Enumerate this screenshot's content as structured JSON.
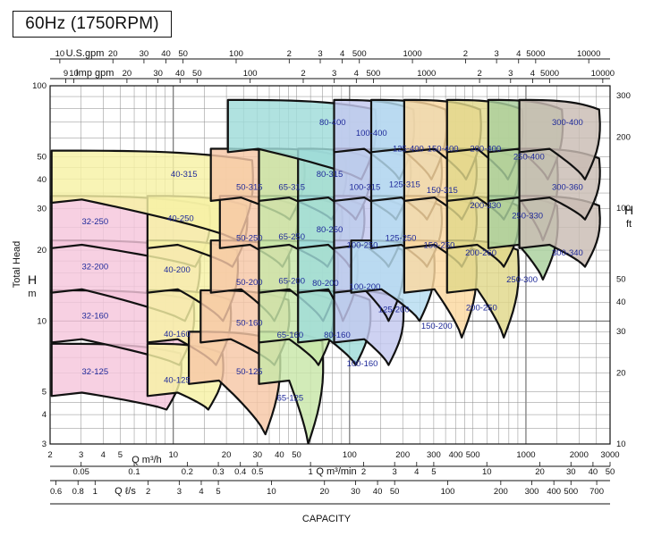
{
  "title": "60Hz (1750RPM)",
  "chart_data": {
    "type": "area",
    "title": "60Hz (1750RPM)",
    "xlabel": "CAPACITY",
    "ylabel": "Total Head",
    "left_axis": {
      "symbol": "H",
      "unit": "m",
      "scale": "log",
      "range": [
        3,
        100
      ],
      "ticks": [
        "3",
        "4",
        "5",
        "10",
        "20",
        "30",
        "40",
        "50",
        "100"
      ]
    },
    "right_axis": {
      "symbol": "H",
      "unit": "ft",
      "scale": "log",
      "range": [
        10,
        330
      ],
      "ticks": [
        "10",
        "20",
        "30",
        "40",
        "50",
        "100",
        "200",
        "300"
      ]
    },
    "top_axes": [
      {
        "label": "U.S.gpm",
        "scale": "log",
        "ticks": [
          "10",
          "20",
          "30",
          "40",
          "50",
          "100",
          "2",
          "3",
          "4",
          "500",
          "1000",
          "2",
          "3",
          "4",
          "5000",
          "10000"
        ]
      },
      {
        "label": "Imp gpm",
        "scale": "log",
        "ticks": [
          "9",
          "10",
          "20",
          "30",
          "40",
          "50",
          "100",
          "2",
          "3",
          "4",
          "500",
          "1000",
          "2",
          "3",
          "4",
          "5000",
          "10000"
        ]
      }
    ],
    "bottom_axes": [
      {
        "label": "Q m³/h",
        "scale": "log",
        "range": [
          2,
          3000
        ],
        "ticks": [
          "2",
          "3",
          "4",
          "5",
          "10",
          "20",
          "30",
          "40",
          "50",
          "100",
          "200",
          "300",
          "400",
          "500",
          "1000",
          "2000",
          "3000"
        ]
      },
      {
        "label": "Q m³/min",
        "scale": "log",
        "ticks": [
          "0.05",
          "0.1",
          "0.2",
          "0.3",
          "0.4",
          "0.5",
          "1",
          "2",
          "3",
          "4",
          "5",
          "10",
          "20",
          "30",
          "40",
          "50"
        ]
      },
      {
        "label": "Q ℓ/s",
        "scale": "log",
        "ticks": [
          "0.6",
          "0.8",
          "1",
          "2",
          "3",
          "4",
          "5",
          "10",
          "20",
          "30",
          "40",
          "50",
          "100",
          "200",
          "300",
          "400",
          "500",
          "700"
        ]
      }
    ],
    "grid": true,
    "series": [
      {
        "name": "32-125",
        "color": "#f5c6dc",
        "q_range_m3h": [
          2,
          11
        ],
        "head_range_m": [
          4.2,
          8
        ]
      },
      {
        "name": "32-160",
        "color": "#f5c6dc",
        "q_range_m3h": [
          2,
          13
        ],
        "head_range_m": [
          6.5,
          13.5
        ]
      },
      {
        "name": "32-200",
        "color": "#f5c6dc",
        "q_range_m3h": [
          2,
          14
        ],
        "head_range_m": [
          10,
          22
        ]
      },
      {
        "name": "32-250",
        "color": "#f5c6dc",
        "q_range_m3h": [
          2,
          16
        ],
        "head_range_m": [
          17,
          34
        ]
      },
      {
        "name": "40-125",
        "color": "#f7f1a5",
        "q_range_m3h": [
          7,
          19
        ],
        "head_range_m": [
          4.2,
          8
        ]
      },
      {
        "name": "40-160",
        "color": "#f7f1a5",
        "q_range_m3h": [
          7,
          21
        ],
        "head_range_m": [
          6.5,
          13.5
        ]
      },
      {
        "name": "40-200",
        "color": "#f7f1a5",
        "q_range_m3h": [
          7,
          23
        ],
        "head_range_m": [
          10,
          22
        ]
      },
      {
        "name": "40-250",
        "color": "#f7f1a5",
        "q_range_m3h": [
          7,
          26
        ],
        "head_range_m": [
          17,
          34
        ]
      },
      {
        "name": "40-315",
        "color": "#f7f1a5",
        "q_range_m3h": [
          2,
          28
        ],
        "head_range_m": [
          22,
          53
        ]
      },
      {
        "name": "50-125",
        "color": "#f6c7a6",
        "q_range_m3h": [
          12,
          40
        ],
        "head_range_m": [
          3.3,
          9
        ]
      },
      {
        "name": "50-160",
        "color": "#f6c7a6",
        "q_range_m3h": [
          14,
          45
        ],
        "head_range_m": [
          6.5,
          13.5
        ]
      },
      {
        "name": "50-200",
        "color": "#f6c7a6",
        "q_range_m3h": [
          16,
          45
        ],
        "head_range_m": [
          10,
          22
        ]
      },
      {
        "name": "50-250",
        "color": "#f6c7a6",
        "q_range_m3h": [
          18,
          50
        ],
        "head_range_m": [
          17,
          34
        ]
      },
      {
        "name": "50-315",
        "color": "#f6c7a6",
        "q_range_m3h": [
          16,
          55
        ],
        "head_range_m": [
          27,
          54
        ]
      },
      {
        "name": "65-125",
        "color": "#c8e6a8",
        "q_range_m3h": [
          30,
          70
        ],
        "head_range_m": [
          3,
          9
        ]
      },
      {
        "name": "65-160",
        "color": "#c8e6a8",
        "q_range_m3h": [
          30,
          80
        ],
        "head_range_m": [
          6.5,
          13.5
        ]
      },
      {
        "name": "65-200",
        "color": "#c8e6a8",
        "q_range_m3h": [
          30,
          85
        ],
        "head_range_m": [
          10,
          22
        ]
      },
      {
        "name": "65-250",
        "color": "#c8e6a8",
        "q_range_m3h": [
          30,
          90
        ],
        "head_range_m": [
          17,
          34
        ]
      },
      {
        "name": "65-315",
        "color": "#c8e6a8",
        "q_range_m3h": [
          30,
          95
        ],
        "head_range_m": [
          27,
          54
        ]
      },
      {
        "name": "80-160",
        "color": "#9fdcd9",
        "q_range_m3h": [
          50,
          130
        ],
        "head_range_m": [
          6.5,
          13.5
        ]
      },
      {
        "name": "80-200",
        "color": "#9fdcd9",
        "q_range_m3h": [
          50,
          110
        ],
        "head_range_m": [
          10,
          22
        ]
      },
      {
        "name": "80-250",
        "color": "#9fdcd9",
        "q_range_m3h": [
          50,
          120
        ],
        "head_range_m": [
          17,
          34
        ]
      },
      {
        "name": "80-315",
        "color": "#9fdcd9",
        "q_range_m3h": [
          50,
          130
        ],
        "head_range_m": [
          27,
          54
        ]
      },
      {
        "name": "80-400",
        "color": "#9fdcd9",
        "q_range_m3h": [
          20,
          140
        ],
        "head_range_m": [
          40,
          87
        ]
      },
      {
        "name": "100-160",
        "color": "#c3c8ef",
        "q_range_m3h": [
          80,
          200
        ],
        "head_range_m": [
          6.5,
          13.5
        ]
      },
      {
        "name": "100-200",
        "color": "#c3c8ef",
        "q_range_m3h": [
          80,
          200
        ],
        "head_range_m": [
          10,
          22
        ]
      },
      {
        "name": "100-250",
        "color": "#c3c8ef",
        "q_range_m3h": [
          80,
          200
        ],
        "head_range_m": [
          17,
          34
        ]
      },
      {
        "name": "100-315",
        "color": "#c3c8ef",
        "q_range_m3h": [
          80,
          220
        ],
        "head_range_m": [
          27,
          54
        ]
      },
      {
        "name": "100-400",
        "color": "#c3c8ef",
        "q_range_m3h": [
          80,
          230
        ],
        "head_range_m": [
          40,
          87
        ]
      },
      {
        "name": "125-200",
        "color": "#b6dcf0",
        "q_range_m3h": [
          100,
          300
        ],
        "head_range_m": [
          10,
          22
        ]
      },
      {
        "name": "125-250",
        "color": "#b6dcf0",
        "q_range_m3h": [
          130,
          330
        ],
        "head_range_m": [
          17,
          34
        ]
      },
      {
        "name": "125-315",
        "color": "#b6dcf0",
        "q_range_m3h": [
          130,
          330
        ],
        "head_range_m": [
          27,
          54
        ]
      },
      {
        "name": "125-400",
        "color": "#b6dcf0",
        "q_range_m3h": [
          130,
          350
        ],
        "head_range_m": [
          40,
          87
        ]
      },
      {
        "name": "150-200",
        "color": "#fbd8a0",
        "q_range_m3h": [
          200,
          520
        ],
        "head_range_m": [
          8.5,
          22
        ]
      },
      {
        "name": "150-250",
        "color": "#fbd8a0",
        "q_range_m3h": [
          200,
          520
        ],
        "head_range_m": [
          17,
          34
        ]
      },
      {
        "name": "150-315",
        "color": "#fbd8a0",
        "q_range_m3h": [
          200,
          520
        ],
        "head_range_m": [
          27,
          54
        ]
      },
      {
        "name": "150-400",
        "color": "#fbd8a0",
        "q_range_m3h": [
          200,
          550
        ],
        "head_range_m": [
          40,
          87
        ]
      },
      {
        "name": "200-250",
        "color": "#e0d88a",
        "q_range_m3h": [
          350,
          900
        ],
        "head_range_m": [
          8.5,
          22
        ]
      },
      {
        "name": "200-260",
        "color": "#e0d88a",
        "q_range_m3h": [
          350,
          900
        ],
        "head_range_m": [
          17,
          34
        ]
      },
      {
        "name": "200-330",
        "color": "#e0d88a",
        "q_range_m3h": [
          350,
          900
        ],
        "head_range_m": [
          27,
          54
        ]
      },
      {
        "name": "200-400",
        "color": "#e0d88a",
        "q_range_m3h": [
          350,
          950
        ],
        "head_range_m": [
          40,
          87
        ]
      },
      {
        "name": "250-300",
        "color": "#a9cf9c",
        "q_range_m3h": [
          600,
          1500
        ],
        "head_range_m": [
          15,
          34
        ]
      },
      {
        "name": "250-330",
        "color": "#a9cf9c",
        "q_range_m3h": [
          600,
          1500
        ],
        "head_range_m": [
          22,
          54
        ]
      },
      {
        "name": "250-400",
        "color": "#a9cf9c",
        "q_range_m3h": [
          600,
          1600
        ],
        "head_range_m": [
          40,
          87
        ]
      },
      {
        "name": "300-340",
        "color": "#c9bcb3",
        "q_range_m3h": [
          900,
          2600
        ],
        "head_range_m": [
          17,
          34
        ]
      },
      {
        "name": "300-360",
        "color": "#c9bcb3",
        "q_range_m3h": [
          900,
          2600
        ],
        "head_range_m": [
          27,
          54
        ]
      },
      {
        "name": "300-400",
        "color": "#c9bcb3",
        "q_range_m3h": [
          900,
          2600
        ],
        "head_range_m": [
          40,
          87
        ]
      }
    ]
  }
}
